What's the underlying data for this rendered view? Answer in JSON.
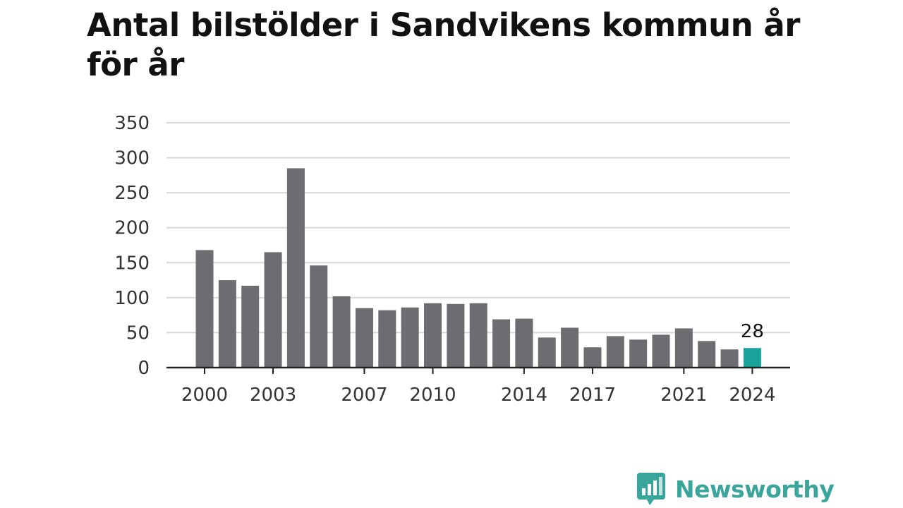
{
  "title": "Antal bilstölder i Sandvikens kommun år för år",
  "brand": {
    "name": "Newsworthy",
    "color": "#3aa59a"
  },
  "colors": {
    "bar": "#6d6c71",
    "highlight": "#1aa39a",
    "grid": "#d9d9d9",
    "axis": "#222222"
  },
  "chart_data": {
    "type": "bar",
    "title": "Antal bilstölder i Sandvikens kommun år för år",
    "xlabel": "",
    "ylabel": "",
    "ylim": [
      0,
      350
    ],
    "yticks": [
      0,
      50,
      100,
      150,
      200,
      250,
      300,
      350
    ],
    "grid": true,
    "categories": [
      "2000",
      "2001",
      "2002",
      "2003",
      "2004",
      "2005",
      "2006",
      "2007",
      "2008",
      "2009",
      "2010",
      "2011",
      "2012",
      "2013",
      "2014",
      "2015",
      "2016",
      "2017",
      "2018",
      "2019",
      "2020",
      "2021",
      "2022",
      "2023",
      "2024"
    ],
    "xtick_labels": [
      "2000",
      "2003",
      "2007",
      "2010",
      "2014",
      "2017",
      "2021",
      "2024"
    ],
    "values": [
      168,
      125,
      117,
      165,
      285,
      146,
      102,
      85,
      82,
      86,
      92,
      91,
      92,
      69,
      70,
      43,
      57,
      29,
      45,
      40,
      47,
      56,
      38,
      26,
      28
    ],
    "highlight_index": 24,
    "data_labels": [
      {
        "category": "2024",
        "text": "28"
      }
    ]
  }
}
